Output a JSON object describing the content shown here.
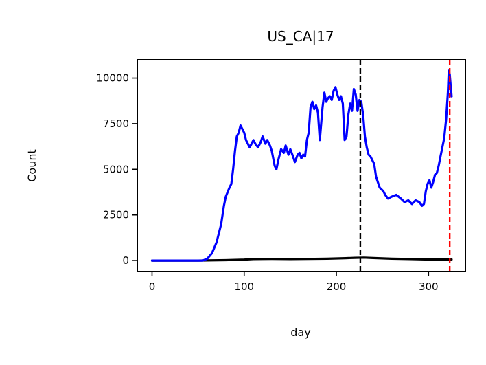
{
  "chart_data": {
    "type": "line",
    "title": "US_CA|17",
    "xlabel": "day",
    "ylabel": "Count",
    "xlim": [
      -16,
      340
    ],
    "ylim": [
      -600,
      11000
    ],
    "xticks": [
      0,
      100,
      200,
      300
    ],
    "yticks": [
      0,
      2500,
      5000,
      7500,
      10000
    ],
    "grid": false,
    "legend": "none",
    "series": [
      {
        "color": "#0000ff",
        "x": [
          0,
          40,
          55,
          60,
          65,
          70,
          75,
          78,
          80,
          84,
          86,
          88,
          90,
          92,
          94,
          96,
          98,
          100,
          102,
          104,
          106,
          108,
          110,
          112,
          115,
          118,
          120,
          123,
          125,
          128,
          130,
          133,
          135,
          137,
          140,
          143,
          145,
          148,
          150,
          153,
          155,
          158,
          160,
          162,
          164,
          166,
          168,
          170,
          172,
          174,
          176,
          178,
          180,
          182,
          185,
          187,
          189,
          191,
          193,
          195,
          197,
          199,
          201,
          203,
          205,
          207,
          209,
          211,
          213,
          215,
          217,
          219,
          221,
          223,
          225,
          227,
          229,
          231,
          233,
          235,
          237,
          239,
          241,
          243,
          245,
          247,
          249,
          251,
          253,
          256,
          260,
          265,
          270,
          274,
          278,
          282,
          286,
          290,
          293,
          295,
          297,
          299,
          301,
          303,
          305,
          307,
          309,
          311,
          313,
          315,
          317,
          319,
          321,
          322,
          323,
          324,
          325
        ],
        "values": [
          0,
          0,
          0,
          100,
          400,
          1000,
          2000,
          3000,
          3500,
          4000,
          4200,
          5000,
          6000,
          6800,
          7000,
          7400,
          7200,
          7000,
          6600,
          6400,
          6200,
          6400,
          6600,
          6400,
          6200,
          6500,
          6800,
          6400,
          6600,
          6300,
          6000,
          5200,
          5000,
          5500,
          6100,
          5900,
          6300,
          5800,
          6100,
          5700,
          5400,
          5800,
          5900,
          5600,
          5800,
          5700,
          6600,
          7000,
          8400,
          8700,
          8300,
          8500,
          8100,
          6600,
          8400,
          9200,
          8700,
          8900,
          9000,
          8800,
          9300,
          9500,
          9100,
          8800,
          9000,
          8600,
          6600,
          6800,
          8000,
          8600,
          8200,
          9400,
          9100,
          8200,
          8800,
          8700,
          8000,
          6800,
          6200,
          5800,
          5700,
          5500,
          5300,
          4600,
          4300,
          4000,
          3900,
          3800,
          3600,
          3400,
          3500,
          3600,
          3400,
          3200,
          3300,
          3100,
          3300,
          3200,
          3000,
          3100,
          3800,
          4200,
          4400,
          4000,
          4300,
          4700,
          4800,
          5200,
          5700,
          6200,
          6700,
          7700,
          9200,
          10400,
          10200,
          9600,
          9000
        ]
      },
      {
        "color": "#000000",
        "x": [
          0,
          50,
          60,
          80,
          100,
          110,
          130,
          150,
          170,
          190,
          210,
          220,
          230,
          240,
          260,
          280,
          300,
          325
        ],
        "values": [
          0,
          0,
          5,
          20,
          50,
          80,
          90,
          80,
          90,
          100,
          130,
          150,
          160,
          140,
          100,
          80,
          60,
          60
        ]
      }
    ],
    "vlines": [
      {
        "x": 226,
        "color": "#000000",
        "style": "dashed"
      },
      {
        "x": 323,
        "color": "#ff0000",
        "style": "dashed"
      }
    ]
  }
}
